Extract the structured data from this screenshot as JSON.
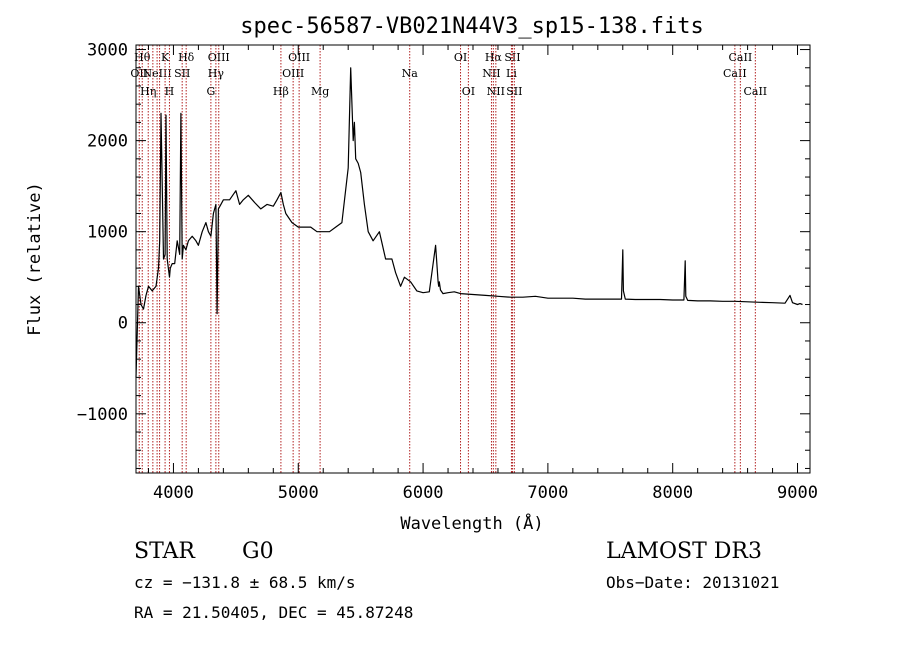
{
  "chart_data": {
    "type": "line",
    "title": "spec-56587-VB021N44V3_sp15-138.fits",
    "xlabel": "Wavelength (Å)",
    "ylabel": "Flux (relative)",
    "xlim": [
      3700,
      9100
    ],
    "ylim": [
      -1650,
      3050
    ],
    "x_ticks": [
      4000,
      5000,
      6000,
      7000,
      8000,
      9000
    ],
    "y_ticks": [
      -1000,
      0,
      1000,
      2000,
      3000
    ],
    "spectrum": {
      "name": "flux",
      "x": [
        3700,
        3720,
        3740,
        3760,
        3780,
        3800,
        3830,
        3860,
        3880,
        3890,
        3900,
        3920,
        3933,
        3940,
        3950,
        3968,
        3975,
        3990,
        4010,
        4030,
        4050,
        4060,
        4070,
        4080,
        4100,
        4120,
        4150,
        4180,
        4200,
        4230,
        4260,
        4280,
        4300,
        4320,
        4340,
        4350,
        4360,
        4380,
        4400,
        4450,
        4500,
        4530,
        4560,
        4600,
        4650,
        4700,
        4750,
        4800,
        4830,
        4861,
        4880,
        4900,
        4950,
        5000,
        5050,
        5100,
        5150,
        5200,
        5250,
        5300,
        5350,
        5400,
        5420,
        5440,
        5450,
        5460,
        5480,
        5500,
        5530,
        5560,
        5600,
        5650,
        5700,
        5750,
        5780,
        5820,
        5850,
        5900,
        5950,
        6000,
        6050,
        6100,
        6120,
        6125,
        6130,
        6140,
        6160,
        6200,
        6250,
        6300,
        6400,
        6500,
        6600,
        6700,
        6800,
        6900,
        7000,
        7100,
        7200,
        7300,
        7400,
        7500,
        7590,
        7600,
        7605,
        7620,
        7700,
        7800,
        7900,
        8000,
        8090,
        8100,
        8105,
        8120,
        8200,
        8300,
        8400,
        8500,
        8600,
        8700,
        8800,
        8900,
        8940,
        8960,
        9000,
        9020,
        9040
      ],
      "y": [
        -600,
        400,
        200,
        150,
        300,
        400,
        350,
        400,
        600,
        900,
        2300,
        700,
        750,
        2280,
        700,
        500,
        600,
        650,
        650,
        900,
        750,
        2300,
        700,
        850,
        800,
        900,
        950,
        900,
        850,
        1000,
        1100,
        1000,
        950,
        1200,
        1300,
        100,
        1250,
        1300,
        1350,
        1350,
        1450,
        1300,
        1350,
        1400,
        1320,
        1250,
        1300,
        1280,
        1350,
        1430,
        1300,
        1200,
        1100,
        1050,
        1050,
        1050,
        1000,
        1000,
        1000,
        1050,
        1100,
        1700,
        2800,
        2000,
        2200,
        1800,
        1750,
        1650,
        1300,
        1000,
        900,
        1000,
        700,
        700,
        550,
        400,
        500,
        450,
        350,
        330,
        340,
        850,
        450,
        400,
        450,
        360,
        320,
        330,
        340,
        320,
        310,
        300,
        290,
        280,
        280,
        290,
        270,
        270,
        270,
        260,
        260,
        260,
        260,
        800,
        350,
        260,
        255,
        255,
        255,
        250,
        250,
        680,
        290,
        245,
        240,
        240,
        235,
        235,
        230,
        225,
        220,
        215,
        300,
        220,
        200,
        210,
        200
      ]
    },
    "lines": [
      {
        "wavelength": 3726,
        "label": "OII",
        "row": 2
      },
      {
        "wavelength": 3750,
        "label": "Hθ",
        "row": 1
      },
      {
        "wavelength": 3798,
        "label": "Hη",
        "row": 3
      },
      {
        "wavelength": 3835,
        "label": "",
        "row": 0
      },
      {
        "wavelength": 3869,
        "label": "NeIII",
        "row": 2
      },
      {
        "wavelength": 3889,
        "label": "",
        "row": 0
      },
      {
        "wavelength": 3933,
        "label": "K",
        "row": 1
      },
      {
        "wavelength": 3968,
        "label": "H",
        "row": 3
      },
      {
        "wavelength": 4070,
        "label": "SII",
        "row": 2
      },
      {
        "wavelength": 4102,
        "label": "Hδ",
        "row": 1
      },
      {
        "wavelength": 4300,
        "label": "G",
        "row": 3
      },
      {
        "wavelength": 4340,
        "label": "Hγ",
        "row": 2
      },
      {
        "wavelength": 4363,
        "label": "OIII",
        "row": 1
      },
      {
        "wavelength": 4861,
        "label": "Hβ",
        "row": 3
      },
      {
        "wavelength": 4959,
        "label": "OIII",
        "row": 2
      },
      {
        "wavelength": 5007,
        "label": "OIII",
        "row": 1
      },
      {
        "wavelength": 5175,
        "label": "Mg",
        "row": 3
      },
      {
        "wavelength": 5893,
        "label": "Na",
        "row": 2
      },
      {
        "wavelength": 6300,
        "label": "OI",
        "row": 1
      },
      {
        "wavelength": 6363,
        "label": "OI",
        "row": 3
      },
      {
        "wavelength": 6548,
        "label": "NII",
        "row": 2
      },
      {
        "wavelength": 6563,
        "label": "Hα",
        "row": 1
      },
      {
        "wavelength": 6583,
        "label": "NII",
        "row": 3
      },
      {
        "wavelength": 6708,
        "label": "Li",
        "row": 2
      },
      {
        "wavelength": 6716,
        "label": "SII",
        "row": 1
      },
      {
        "wavelength": 6731,
        "label": "SII",
        "row": 3
      },
      {
        "wavelength": 8498,
        "label": "CaII",
        "row": 2
      },
      {
        "wavelength": 8542,
        "label": "CaII",
        "row": 1
      },
      {
        "wavelength": 8662,
        "label": "CaII",
        "row": 3
      }
    ]
  },
  "info": {
    "object_class": "STAR",
    "subclass": "G0",
    "survey": "LAMOST DR3",
    "cz": "cz = −131.8 ± 68.5 km/s",
    "obs_date": "Obs−Date: 20131021",
    "coords": "RA =  21.50405, DEC =  45.87248"
  },
  "colors": {
    "line_marker": "#b22222",
    "spectrum": "#000000",
    "axes": "#000000"
  }
}
